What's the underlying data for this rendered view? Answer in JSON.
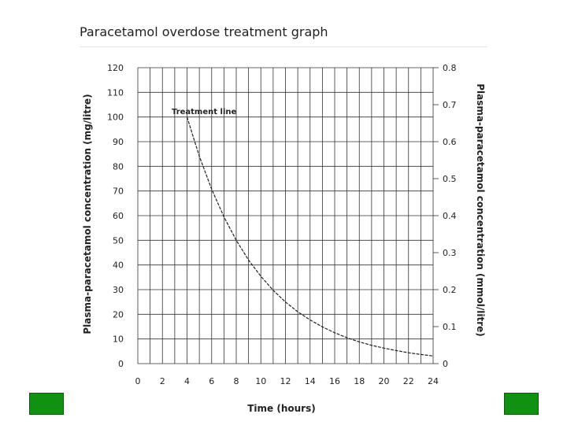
{
  "page": {
    "title": "Paracetamol overdose treatment graph"
  },
  "colors": {
    "nav_button": "#119111",
    "grid": "#333333",
    "curve": "#222222"
  },
  "navigation": {
    "prev_icon": "nav-square-icon",
    "next_icon": "nav-square-icon"
  },
  "chart_data": {
    "type": "line",
    "title": "Paracetamol overdose treatment graph",
    "xlabel": "Time (hours)",
    "ylabel": "Plasma-paracetamol concentration (mg/litre)",
    "y2label": "Plasma-paracetamol concentration (mmol/litre)",
    "xlim": [
      0,
      24
    ],
    "ylim": [
      0,
      120
    ],
    "y2lim": [
      0,
      0.8
    ],
    "x_ticks": [
      0,
      2,
      4,
      6,
      8,
      10,
      12,
      14,
      16,
      18,
      20,
      22,
      24
    ],
    "x_tick_labels": [
      "0",
      "2",
      "4",
      "6",
      "8",
      "10",
      "12",
      "14",
      "16",
      "18",
      "20",
      "22",
      "24"
    ],
    "y_ticks": [
      0,
      10,
      20,
      30,
      40,
      50,
      60,
      70,
      80,
      90,
      100,
      110,
      120
    ],
    "y_tick_labels": [
      "0",
      "10",
      "20",
      "30",
      "40",
      "50",
      "60",
      "70",
      "80",
      "90",
      "100",
      "110",
      "120"
    ],
    "y2_ticks": [
      0,
      0.1,
      0.2,
      0.3,
      0.4,
      0.5,
      0.6,
      0.7,
      0.8
    ],
    "y2_tick_labels": [
      "0",
      "0.1",
      "0.2",
      "0.3",
      "0.4",
      "0.5",
      "0.6",
      "0.7",
      "0.8"
    ],
    "grid": true,
    "annotation": "Treatment line",
    "series": [
      {
        "name": "Treatment line",
        "x": [
          4,
          5,
          6,
          7,
          8,
          9,
          10,
          11,
          12,
          13,
          14,
          15,
          16,
          17,
          18,
          19,
          20,
          21,
          22,
          23,
          24
        ],
        "y": [
          100,
          84.1,
          70.7,
          59.5,
          50,
          42,
          35.4,
          29.7,
          25,
          21,
          17.7,
          14.9,
          12.5,
          10.5,
          8.8,
          7.4,
          6.3,
          5.3,
          4.4,
          3.7,
          3.1
        ]
      }
    ]
  }
}
